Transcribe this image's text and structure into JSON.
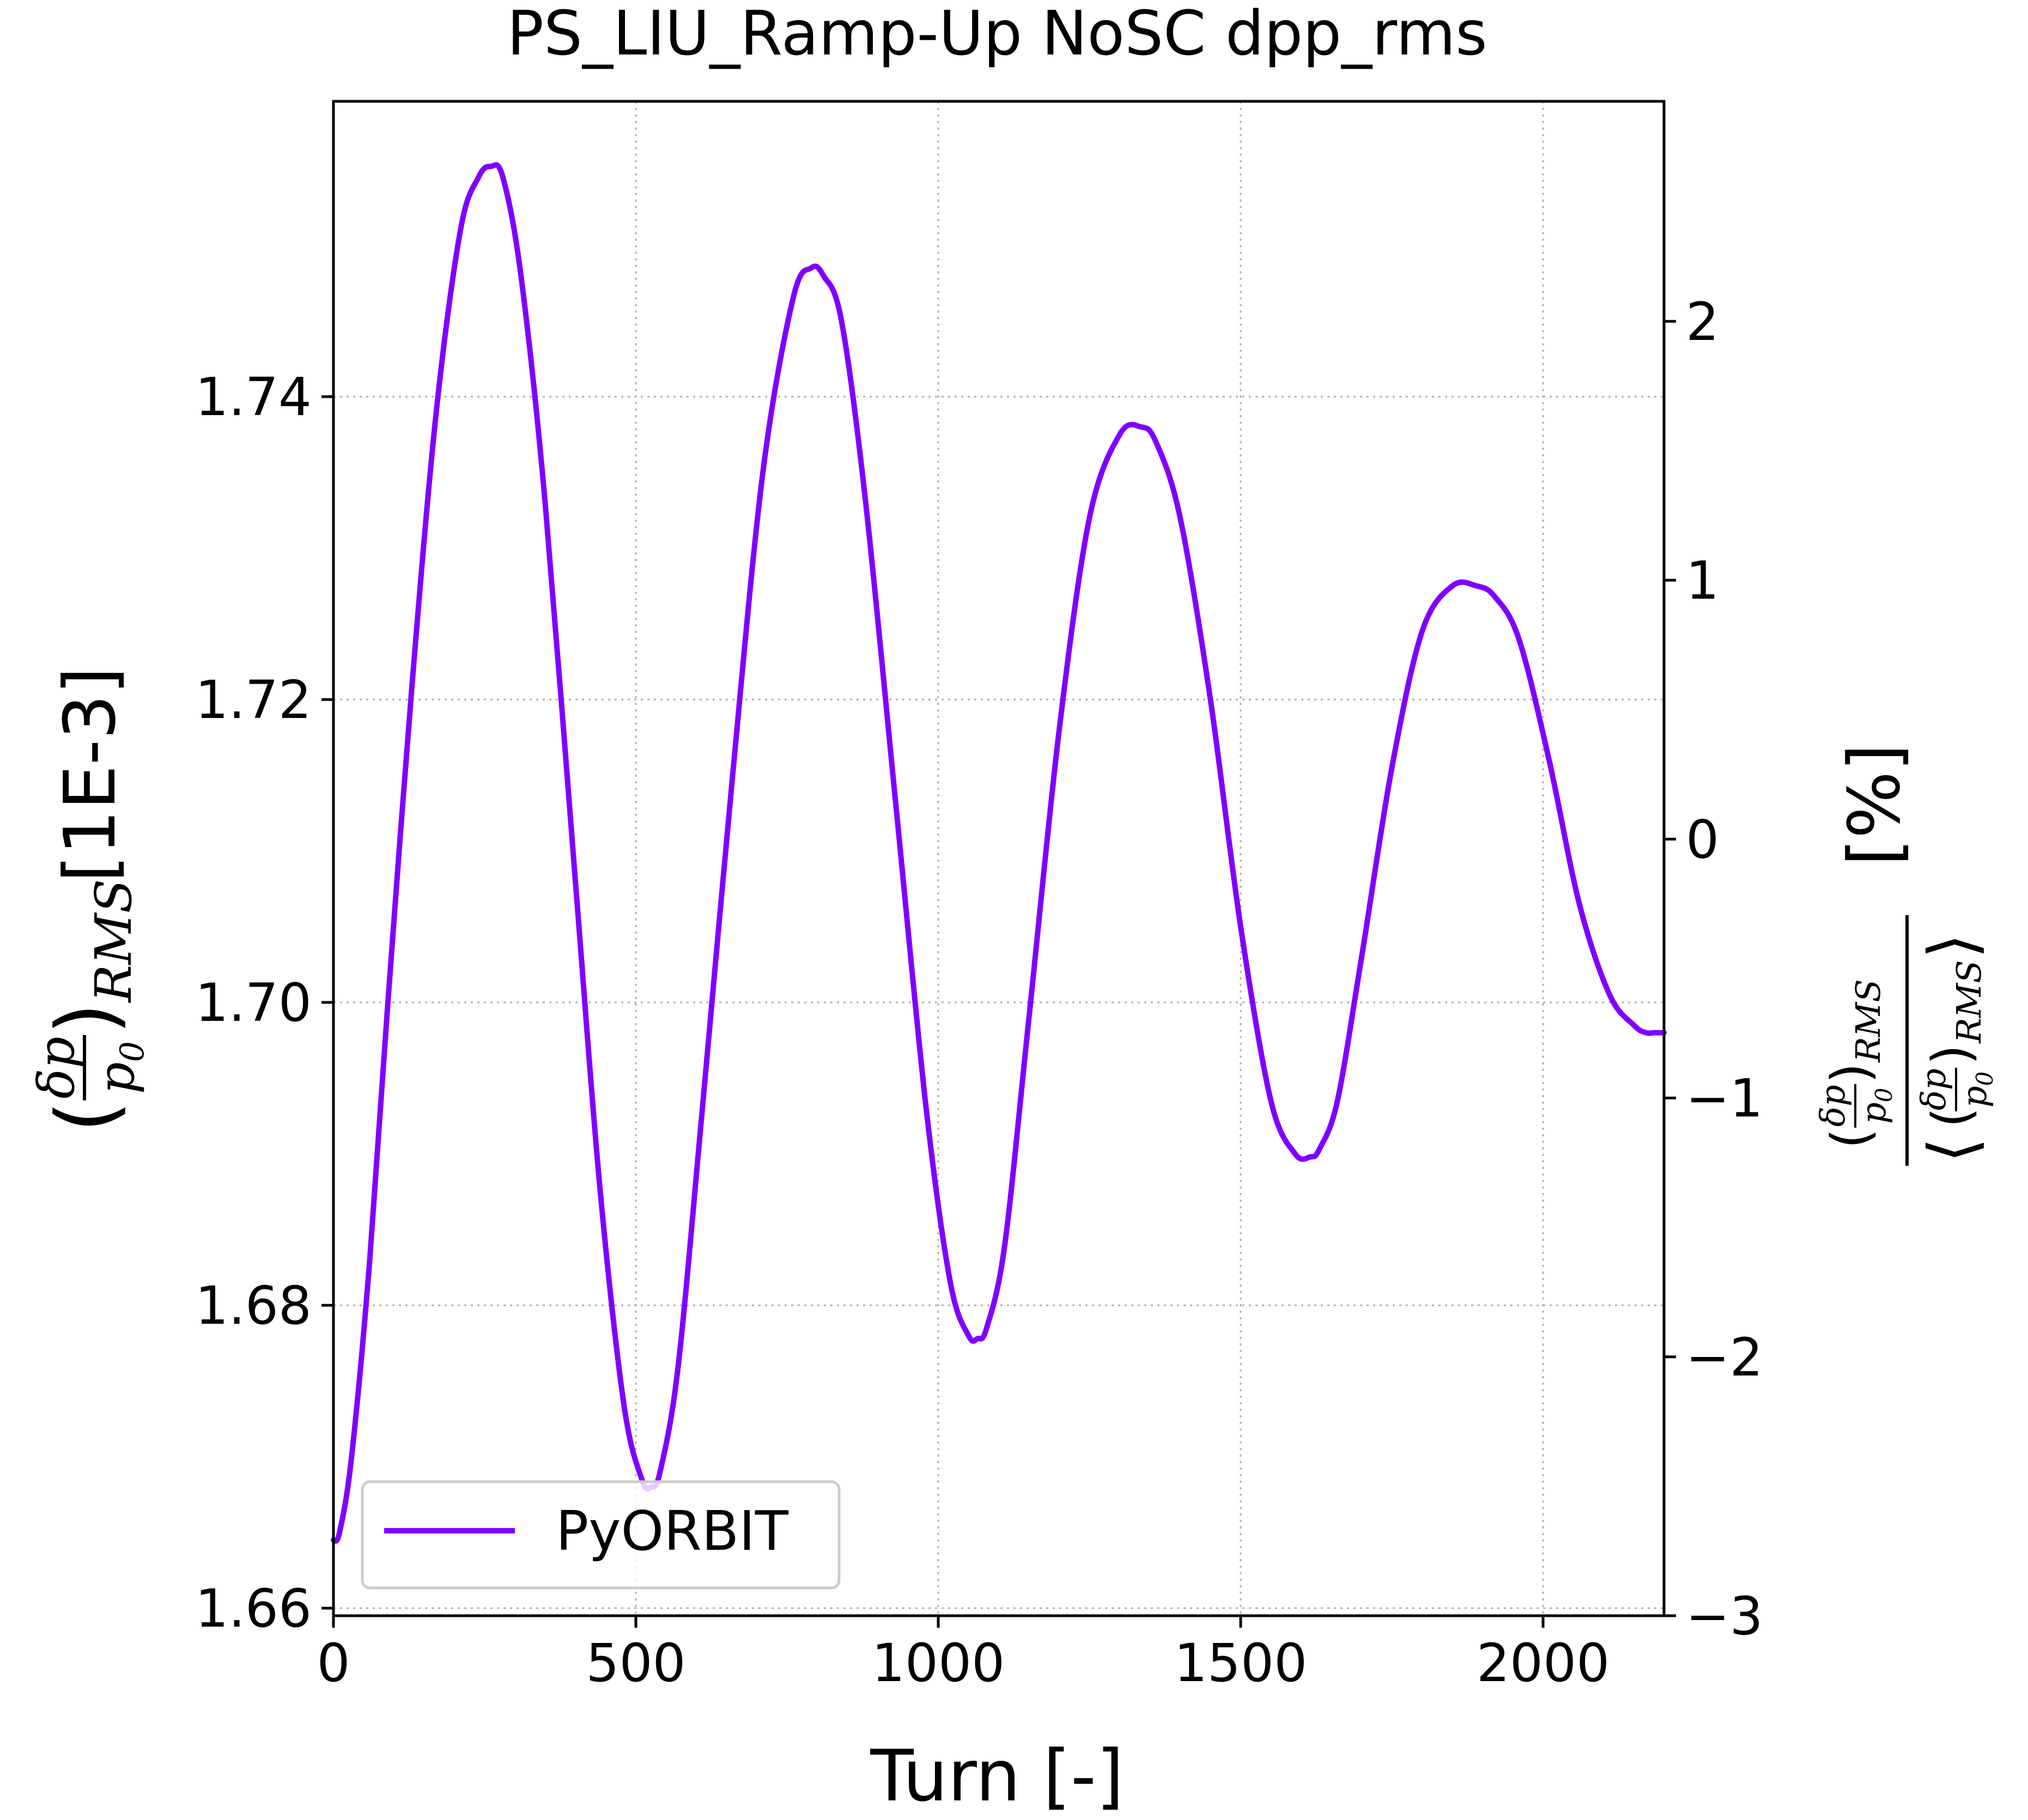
{
  "chart_data": {
    "type": "line",
    "title": "PS_LIU_Ramp-Up NoSC dpp_rms",
    "xlabel": "Turn [-]",
    "ylabel": "(δp/p0)RMS [1E-3]",
    "y2label": "(δp/p0)RMS / ⟨(δp/p0)RMS⟩ [%]",
    "xlim": [
      0,
      2200
    ],
    "ylim": [
      1.6595,
      1.7595
    ],
    "y2lim": [
      -3.0,
      2.85
    ],
    "x_ticks": [
      "0",
      "500",
      "1000",
      "1500",
      "2000"
    ],
    "y_ticks": [
      "1.66",
      "1.68",
      "1.70",
      "1.72",
      "1.74"
    ],
    "y2_ticks": [
      "−3",
      "−2",
      "−1",
      "0",
      "1",
      "2"
    ],
    "grid": true,
    "legend": {
      "position": "lower-left",
      "entries": [
        "PyORBIT"
      ]
    },
    "line_color": "#8000ff",
    "series": [
      {
        "name": "PyORBIT",
        "x": [
          0,
          10,
          30,
          60,
          90,
          130,
          170,
          210,
          240,
          260,
          280,
          310,
          350,
          400,
          440,
          480,
          510,
          525,
          540,
          570,
          610,
          660,
          710,
          760,
          790,
          810,
          840,
          880,
          930,
          980,
          1020,
          1050,
          1065,
          1080,
          1110,
          1150,
          1200,
          1250,
          1300,
          1335,
          1360,
          1400,
          1450,
          1500,
          1550,
          1590,
          1615,
          1630,
          1660,
          1700,
          1750,
          1800,
          1850,
          1890,
          1920,
          1960,
          2010,
          2060,
          2110,
          2150,
          2170,
          2185,
          2200
        ],
        "y": [
          1.6645,
          1.665,
          1.67,
          1.683,
          1.7,
          1.721,
          1.739,
          1.751,
          1.7545,
          1.7552,
          1.7545,
          1.748,
          1.733,
          1.708,
          1.688,
          1.6735,
          1.6685,
          1.668,
          1.669,
          1.676,
          1.693,
          1.715,
          1.735,
          1.7465,
          1.7485,
          1.748,
          1.745,
          1.733,
          1.713,
          1.693,
          1.6815,
          1.678,
          1.6778,
          1.6785,
          1.684,
          1.699,
          1.718,
          1.732,
          1.7375,
          1.738,
          1.737,
          1.732,
          1.72,
          1.705,
          1.6935,
          1.69,
          1.6898,
          1.6903,
          1.6935,
          1.703,
          1.7155,
          1.7245,
          1.7275,
          1.7275,
          1.7268,
          1.724,
          1.716,
          1.7065,
          1.7005,
          1.6985,
          1.698,
          1.698,
          1.698
        ]
      }
    ]
  }
}
